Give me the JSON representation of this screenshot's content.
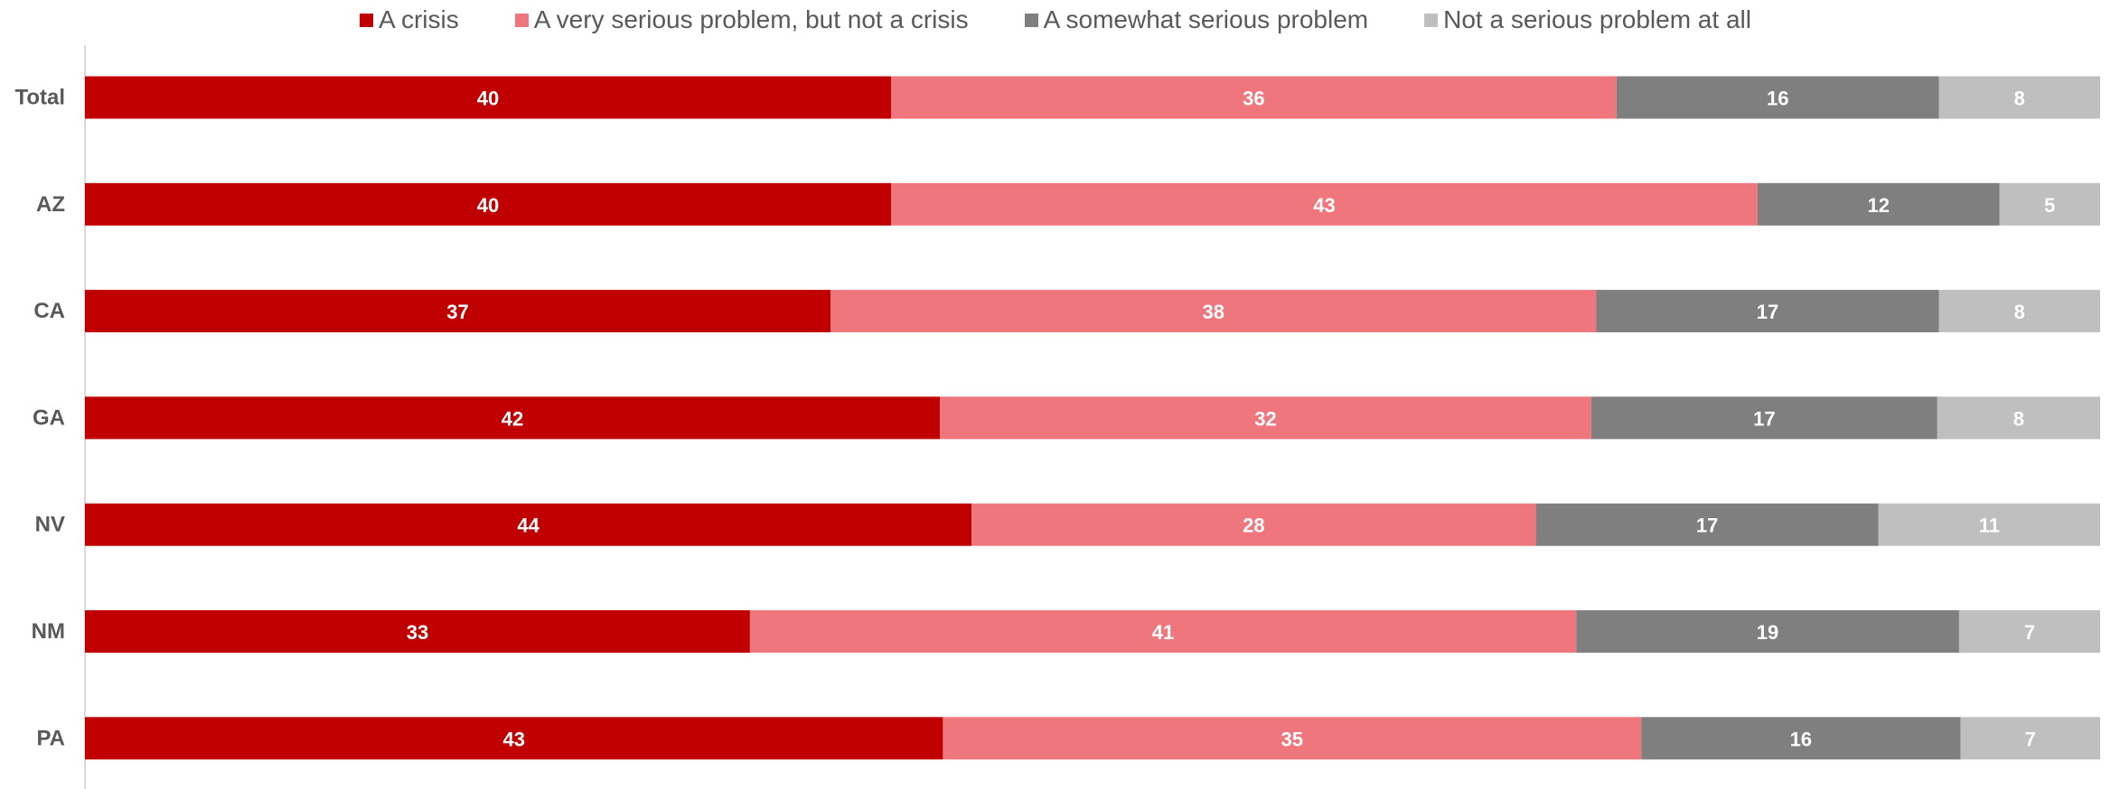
{
  "chart_data": {
    "type": "bar",
    "orientation": "horizontal",
    "stacked": true,
    "categories": [
      "Total",
      "AZ",
      "CA",
      "GA",
      "NV",
      "NM",
      "PA"
    ],
    "series": [
      {
        "name": "A crisis",
        "color": "#C00000",
        "values": [
          40,
          40,
          37,
          42,
          44,
          33,
          43
        ]
      },
      {
        "name": "A very serious problem, but not a crisis",
        "color": "#EE767C",
        "values": [
          36,
          43,
          38,
          32,
          28,
          41,
          35
        ]
      },
      {
        "name": "A somewhat serious problem",
        "color": "#7F7F7F",
        "values": [
          16,
          12,
          17,
          17,
          17,
          19,
          16
        ]
      },
      {
        "name": "Not a serious problem at all",
        "color": "#BFBFBF",
        "values": [
          8,
          5,
          8,
          8,
          11,
          7,
          7
        ]
      }
    ],
    "legend_position": "top",
    "data_labels": true,
    "grid": false
  }
}
